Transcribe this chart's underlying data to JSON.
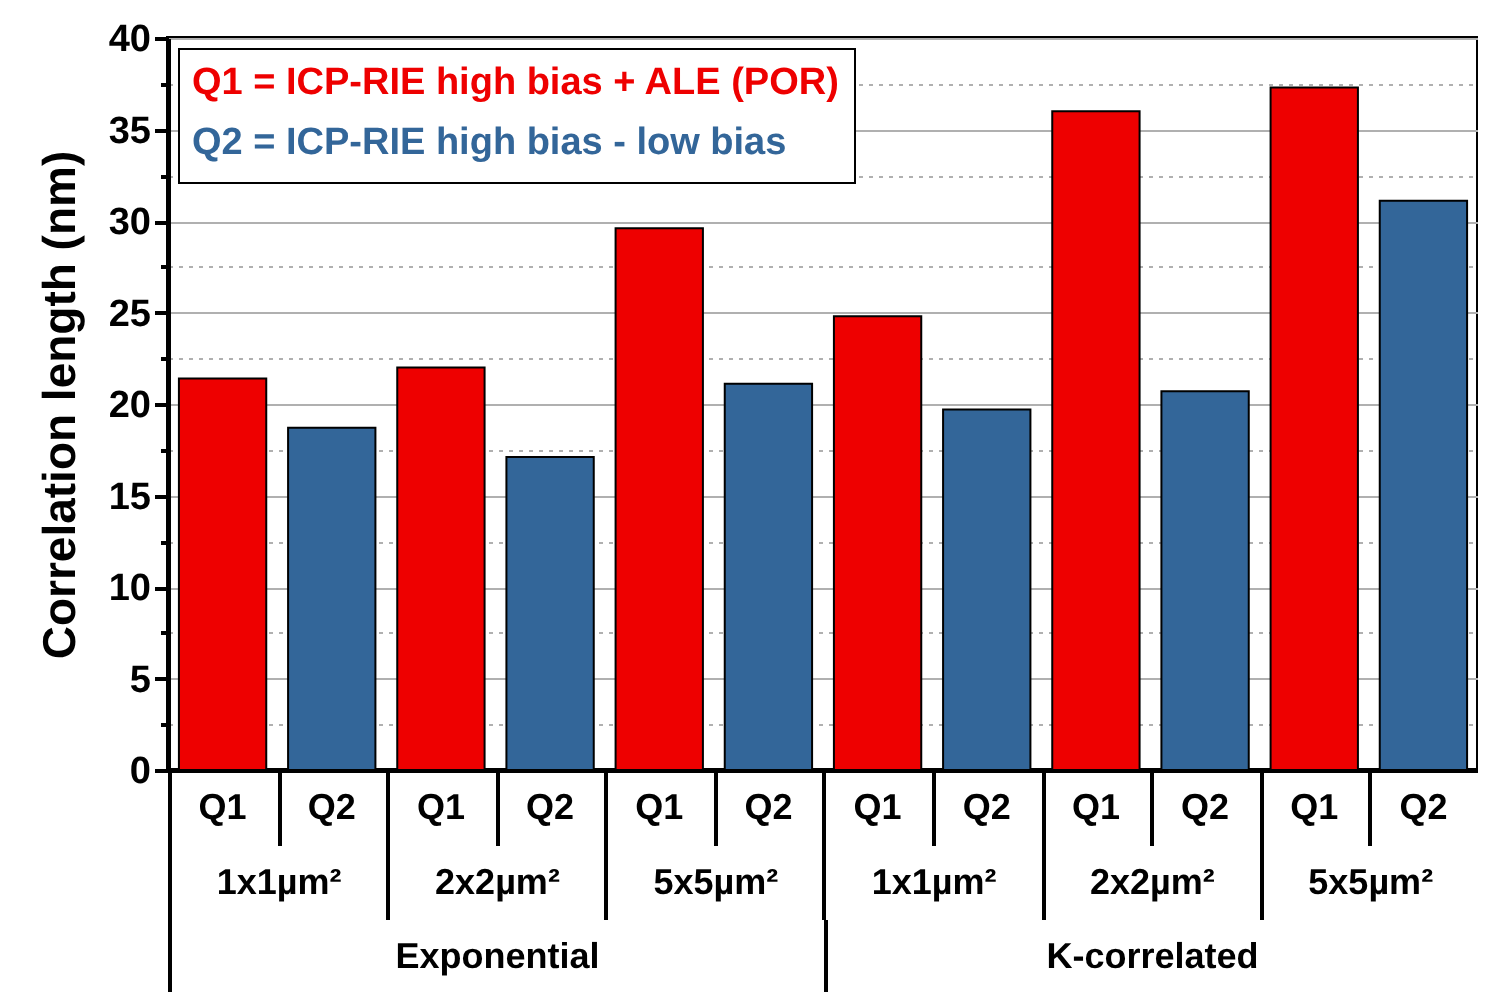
{
  "chart_data": {
    "type": "bar",
    "ylabel": "Correlation length (nm)",
    "categories": [
      "Q1",
      "Q2",
      "Q1",
      "Q2",
      "Q1",
      "Q2",
      "Q1",
      "Q2",
      "Q1",
      "Q2",
      "Q1",
      "Q2"
    ],
    "series": [
      {
        "name": "Q1 = ICP-RIE high bias + ALE (POR)",
        "color": "#ee0000",
        "values": [
          21.4,
          null,
          22.0,
          null,
          29.6,
          null,
          24.8,
          null,
          36.0,
          null,
          37.3,
          null
        ]
      },
      {
        "name": "Q2 = ICP-RIE high bias - low bias",
        "color": "#336699",
        "values": [
          null,
          18.7,
          null,
          17.1,
          null,
          21.1,
          null,
          19.7,
          null,
          20.7,
          null,
          31.1
        ]
      }
    ],
    "ylim": [
      0,
      40
    ],
    "yticks": [
      0,
      {
        "value": 2.5,
        "label": null
      },
      5,
      {
        "value": 7.5,
        "label": null
      },
      10,
      {
        "value": 12.5,
        "label": null
      },
      15,
      {
        "value": 17.5,
        "label": null
      },
      20,
      {
        "value": 22.5,
        "label": null
      },
      25,
      {
        "value": 27.5,
        "label": null
      },
      30,
      {
        "value": 32.5,
        "label": null
      },
      35,
      {
        "value": 37.5,
        "label": null
      },
      40
    ],
    "grid": true,
    "legend": "top left",
    "annotations": [
      "1x1µm²",
      "2x2µm²",
      "5x5µm²",
      "1x1µm²",
      "2x2µm²",
      "5x5µm²",
      "Exponential",
      "K-correlated"
    ]
  }
}
